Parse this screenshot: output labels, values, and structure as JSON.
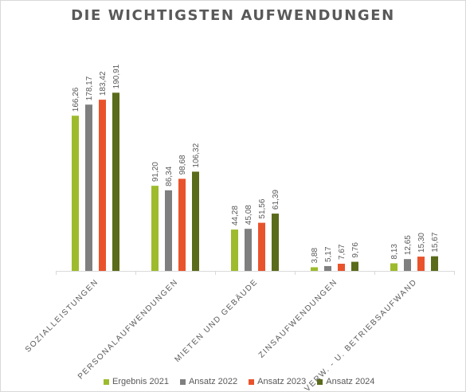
{
  "chart_data": {
    "type": "bar",
    "title": "DIE WICHTIGSTEN AUFWENDUNGEN",
    "xlabel": "",
    "ylabel": "",
    "ylim": [
      0,
      210
    ],
    "grid": false,
    "legend_position": "bottom",
    "categories": [
      "SOZIALLEISTUNGEN",
      "PERSONALAUFWENDUNGEN",
      "MIETEN UND GEBÄUDE",
      "ZINSAUFWENDUNGEN",
      "VERW. - U. BETRIEBSAUFWAND"
    ],
    "series": [
      {
        "name": "Ergebnis 2021",
        "color": "#9dbb2d",
        "values": [
          166.26,
          91.2,
          44.28,
          3.88,
          8.13
        ],
        "labels": [
          "166,26",
          "91,20",
          "44,28",
          "3,88",
          "8,13"
        ]
      },
      {
        "name": "Ansatz 2022",
        "color": "#7f7f7f",
        "values": [
          178.17,
          86.34,
          45.08,
          5.17,
          12.65
        ],
        "labels": [
          "178,17",
          "86,34",
          "45,08",
          "5,17",
          "12,65"
        ]
      },
      {
        "name": "Ansatz 2023",
        "color": "#e9532c",
        "values": [
          183.42,
          98.68,
          51.56,
          7.67,
          15.3
        ],
        "labels": [
          "183,42",
          "98,68",
          "51,56",
          "7,67",
          "15,30"
        ]
      },
      {
        "name": "Ansatz 2024",
        "color": "#5a6b1c",
        "values": [
          190.91,
          106.32,
          61.39,
          9.76,
          15.67
        ],
        "labels": [
          "190,91",
          "106,32",
          "61,39",
          "9,76",
          "15,67"
        ]
      }
    ]
  }
}
